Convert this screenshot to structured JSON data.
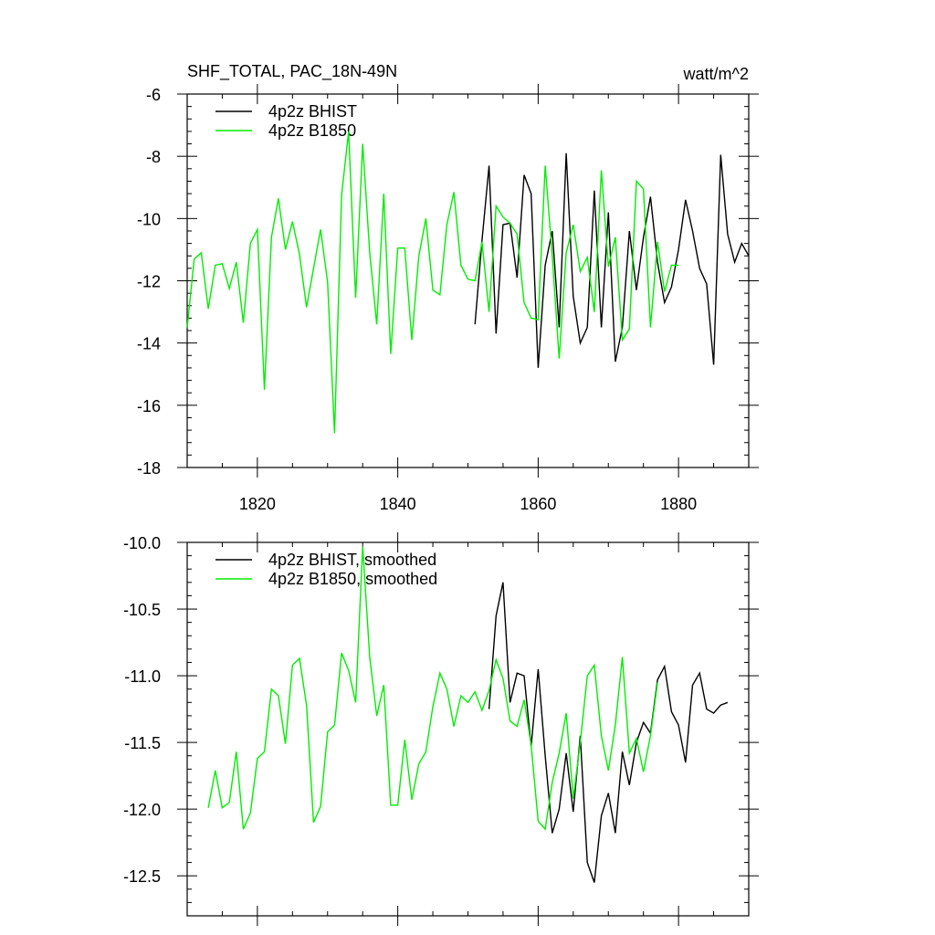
{
  "chart_data": [
    {
      "type": "line",
      "title": "SHF_TOTAL, PAC_18N-49N",
      "units": "watt/m^2",
      "xlim": [
        1810,
        1890
      ],
      "ylim": [
        -18,
        -6
      ],
      "xticks": [
        1820,
        1840,
        1860,
        1880
      ],
      "xtick_labels": [
        "1820",
        "1840",
        "1860",
        "1880"
      ],
      "yticks": [
        -18,
        -16,
        -14,
        -12,
        -10,
        -8,
        -6
      ],
      "ytick_labels": [
        "-18",
        "-16",
        "-14",
        "-12",
        "-10",
        "-8",
        "-6"
      ],
      "legend": "top-left",
      "series": [
        {
          "name": "4p2z BHIST",
          "color": "#000000",
          "x": [
            1851,
            1852,
            1853,
            1854,
            1855,
            1856,
            1857,
            1858,
            1859,
            1860,
            1861,
            1862,
            1863,
            1864,
            1865,
            1866,
            1867,
            1868,
            1869,
            1870,
            1871,
            1872,
            1873,
            1874,
            1875,
            1876,
            1877,
            1878,
            1879,
            1880,
            1881,
            1882,
            1883,
            1884,
            1885,
            1886,
            1887,
            1888,
            1889,
            1890
          ],
          "values": [
            -13.4,
            -10.7,
            -8.3,
            -13.7,
            -10.2,
            -10.15,
            -11.9,
            -8.6,
            -9.2,
            -14.8,
            -11.5,
            -10.4,
            -13.5,
            -7.9,
            -12.5,
            -14.0,
            -13.5,
            -9.1,
            -13.5,
            -9.8,
            -14.6,
            -13.5,
            -10.4,
            -12.3,
            -10.6,
            -9.3,
            -11.4,
            -12.7,
            -12.2,
            -11.0,
            -9.4,
            -10.4,
            -11.6,
            -12.1,
            -14.7,
            -7.95,
            -10.5,
            -11.4,
            -10.8,
            -11.2
          ]
        },
        {
          "name": "4p2z B1850",
          "color": "#00ee00",
          "x": [
            1810,
            1811,
            1812,
            1813,
            1814,
            1815,
            1816,
            1817,
            1818,
            1819,
            1820,
            1821,
            1822,
            1823,
            1824,
            1825,
            1826,
            1827,
            1828,
            1829,
            1830,
            1831,
            1832,
            1833,
            1834,
            1835,
            1836,
            1837,
            1838,
            1839,
            1840,
            1841,
            1842,
            1843,
            1844,
            1845,
            1846,
            1847,
            1848,
            1849,
            1850,
            1851,
            1852,
            1853,
            1854,
            1855,
            1856,
            1857,
            1858,
            1859,
            1860,
            1861,
            1862,
            1863,
            1864,
            1865,
            1866,
            1867,
            1868,
            1869,
            1870,
            1871,
            1872,
            1873,
            1874,
            1875,
            1876,
            1877,
            1878,
            1879,
            1880
          ],
          "values": [
            -13.5,
            -11.3,
            -11.1,
            -12.9,
            -11.5,
            -11.45,
            -12.25,
            -11.4,
            -13.35,
            -10.8,
            -10.35,
            -15.5,
            -10.6,
            -9.35,
            -11.0,
            -10.1,
            -11.15,
            -12.85,
            -11.6,
            -10.35,
            -12.05,
            -16.9,
            -9.25,
            -7.2,
            -12.55,
            -7.6,
            -11.1,
            -13.4,
            -9.2,
            -14.35,
            -10.95,
            -10.95,
            -13.9,
            -11.2,
            -10.0,
            -12.3,
            -12.45,
            -10.2,
            -9.15,
            -11.5,
            -11.95,
            -12.0,
            -10.75,
            -13.0,
            -9.6,
            -9.95,
            -10.15,
            -10.5,
            -12.7,
            -13.2,
            -13.25,
            -8.3,
            -11.2,
            -14.5,
            -11.1,
            -10.2,
            -11.7,
            -11.25,
            -13.0,
            -8.45,
            -11.55,
            -10.6,
            -13.9,
            -13.55,
            -8.8,
            -9.05,
            -13.5,
            -10.75,
            -12.35,
            -11.5,
            -11.5
          ]
        }
      ]
    },
    {
      "type": "line",
      "xlim": [
        1810,
        1890
      ],
      "ylim": [
        -12.8,
        -10.0
      ],
      "xticks": [
        1820,
        1840,
        1860,
        1880
      ],
      "yticks": [
        -12.5,
        -12.0,
        -11.5,
        -11.0,
        -10.5,
        -10.0
      ],
      "ytick_labels": [
        "-12.5",
        "-12.0",
        "-11.5",
        "-11.0",
        "-10.5",
        "-10.0"
      ],
      "legend": "top-left",
      "series": [
        {
          "name": "4p2z BHIST, smoothed",
          "color": "#000000",
          "x": [
            1853,
            1854,
            1855,
            1856,
            1857,
            1858,
            1859,
            1860,
            1861,
            1862,
            1863,
            1864,
            1865,
            1866,
            1867,
            1868,
            1869,
            1870,
            1871,
            1872,
            1873,
            1874,
            1875,
            1876,
            1877,
            1878,
            1879,
            1880,
            1881,
            1882,
            1883,
            1884,
            1885,
            1886,
            1887
          ],
          "values": [
            -11.25,
            -10.55,
            -10.3,
            -11.2,
            -10.98,
            -11.0,
            -11.53,
            -10.95,
            -11.6,
            -12.18,
            -12.0,
            -11.58,
            -12.02,
            -11.45,
            -12.4,
            -12.55,
            -12.05,
            -11.88,
            -12.18,
            -11.57,
            -11.82,
            -11.5,
            -11.35,
            -11.43,
            -11.03,
            -10.93,
            -11.27,
            -11.37,
            -11.65,
            -11.07,
            -10.98,
            -11.25,
            -11.28,
            -11.22,
            -11.2
          ]
        },
        {
          "name": "4p2z B1850, smoothed",
          "color": "#00ee00",
          "x": [
            1813,
            1814,
            1815,
            1816,
            1817,
            1818,
            1819,
            1820,
            1821,
            1822,
            1823,
            1824,
            1825,
            1826,
            1827,
            1828,
            1829,
            1830,
            1831,
            1832,
            1833,
            1834,
            1835,
            1836,
            1837,
            1838,
            1839,
            1840,
            1841,
            1842,
            1843,
            1844,
            1845,
            1846,
            1847,
            1848,
            1849,
            1850,
            1851,
            1852,
            1853,
            1854,
            1855,
            1856,
            1857,
            1858,
            1859,
            1860,
            1861,
            1862,
            1863,
            1864,
            1865,
            1866,
            1867,
            1868,
            1869,
            1870,
            1871,
            1872,
            1873,
            1874,
            1875,
            1876,
            1877
          ],
          "values": [
            -11.99,
            -11.71,
            -11.99,
            -11.95,
            -11.57,
            -12.15,
            -12.03,
            -11.62,
            -11.57,
            -11.1,
            -11.15,
            -11.51,
            -10.92,
            -10.87,
            -11.22,
            -12.1,
            -11.98,
            -11.42,
            -11.37,
            -10.83,
            -10.96,
            -11.2,
            -10.03,
            -10.86,
            -11.3,
            -11.07,
            -11.97,
            -11.97,
            -11.48,
            -11.93,
            -11.66,
            -11.57,
            -11.23,
            -10.98,
            -11.1,
            -11.38,
            -11.15,
            -11.2,
            -11.12,
            -11.26,
            -11.11,
            -10.88,
            -11.02,
            -11.34,
            -11.38,
            -11.18,
            -11.52,
            -12.09,
            -12.15,
            -11.8,
            -11.58,
            -11.28,
            -11.92,
            -11.5,
            -11.0,
            -10.92,
            -11.45,
            -11.71,
            -11.37,
            -10.86,
            -11.58,
            -11.47,
            -11.72,
            -11.45,
            -11.05
          ]
        }
      ]
    }
  ]
}
